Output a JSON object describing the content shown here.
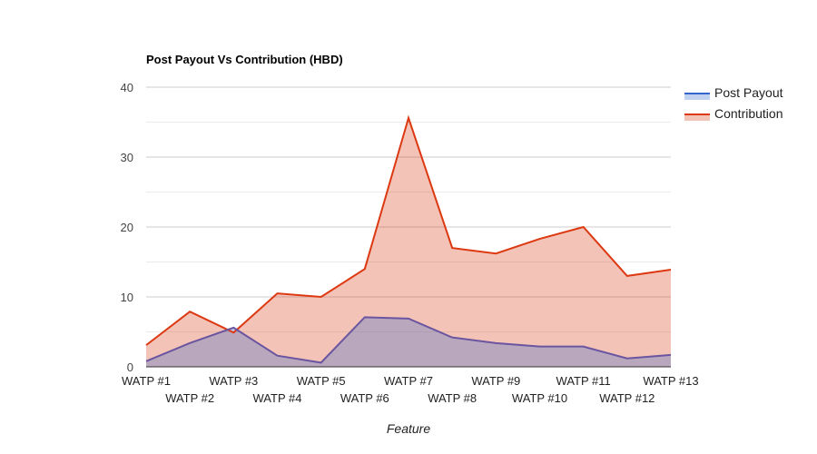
{
  "chart_data": {
    "type": "area",
    "title": "Post Payout Vs Contribution (HBD)",
    "xlabel": "Feature",
    "ylabel": "",
    "ylim": [
      0,
      40
    ],
    "yticks": [
      "0",
      "10",
      "20",
      "30",
      "40"
    ],
    "grid": true,
    "legend_position": "right",
    "categories": [
      "WATP #1",
      "WATP #2",
      "WATP #3",
      "WATP #4",
      "WATP #5",
      "WATP #6",
      "WATP #7",
      "WATP #8",
      "WATP #9",
      "WATP #10",
      "WATP #11",
      "WATP #12",
      "WATP #13"
    ],
    "series": [
      {
        "name": "Post Payout",
        "color": "#3366cc",
        "values": [
          0.8,
          3.4,
          5.6,
          1.6,
          0.6,
          7.1,
          6.9,
          4.2,
          3.4,
          2.9,
          2.9,
          1.2,
          1.7
        ]
      },
      {
        "name": "Contribution",
        "color": "#dc3912",
        "values": [
          3.1,
          7.9,
          4.9,
          10.5,
          10.0,
          14.0,
          35.6,
          17.0,
          16.2,
          18.3,
          20.0,
          13.0,
          13.9
        ]
      }
    ]
  }
}
